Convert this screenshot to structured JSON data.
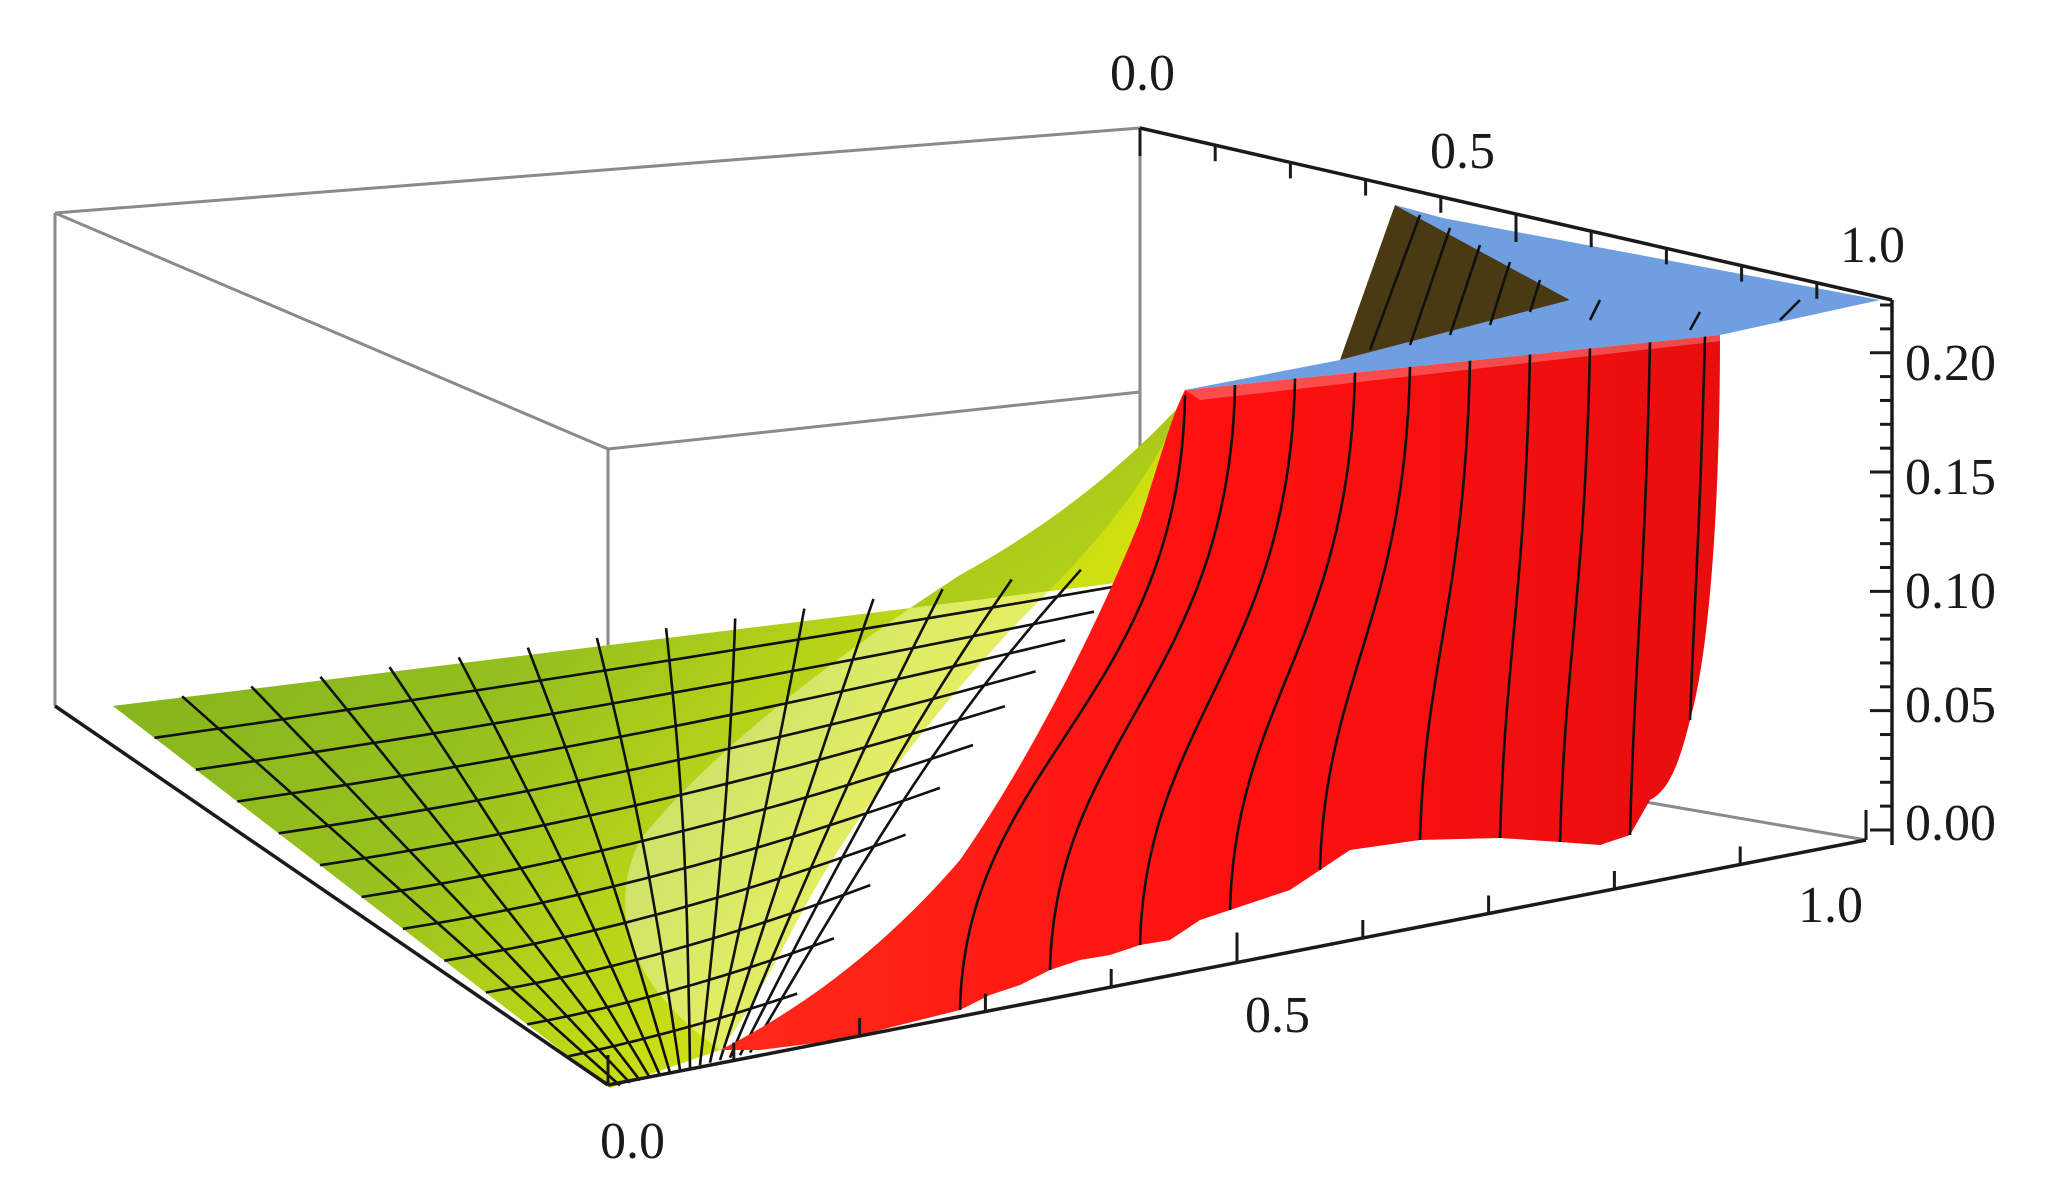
{
  "chart_data": {
    "type": "surface3d",
    "title": "",
    "x_axis": {
      "label": "",
      "range": [
        0,
        1
      ],
      "ticks": [
        "0.0",
        "0.5",
        "1.0"
      ]
    },
    "y_axis": {
      "label": "",
      "range": [
        0,
        1
      ],
      "ticks": [
        "0.0",
        "0.5",
        "1.0"
      ]
    },
    "z_axis": {
      "label": "",
      "range": [
        0,
        0.22
      ],
      "ticks": [
        "0.00",
        "0.05",
        "0.10",
        "0.15",
        "0.20"
      ]
    },
    "box": true,
    "mesh": true,
    "surfaces": [
      {
        "name": "",
        "color": "#9acd32",
        "description_values": {
          "z_at_low_corner": 0.0,
          "z_at_ridge": 0.1
        }
      },
      {
        "name": "",
        "color": "#ff1a1a",
        "z_plateau": 0.2
      },
      {
        "name": "",
        "color": "#6f9fe0",
        "z_plateau": 0.2
      },
      {
        "name": "",
        "color": "#4a3a14",
        "z_plateau": 0.2
      }
    ],
    "colors": {
      "green": "#9acd32",
      "yellow": "#f2f200",
      "red": "#ff1a1a",
      "blue": "#6f9fe0",
      "brown": "#4a3a14"
    }
  }
}
